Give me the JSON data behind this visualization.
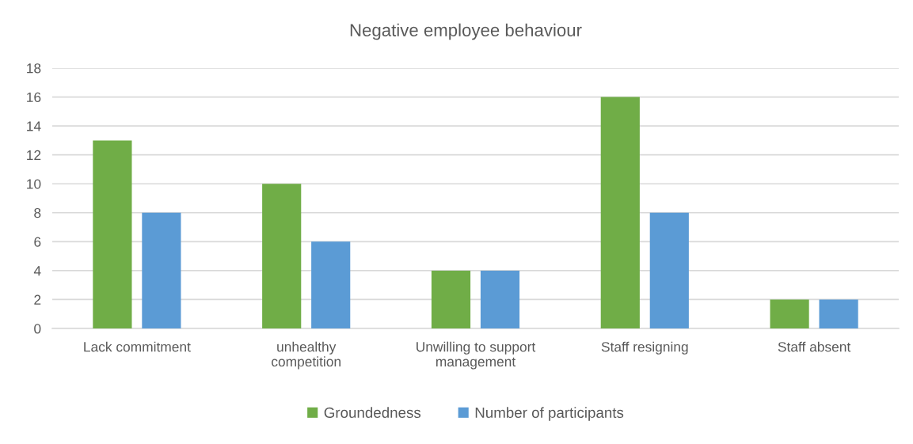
{
  "chart_data": {
    "type": "bar",
    "title": "Negative employee behaviour",
    "categories": [
      "Lack commitment",
      "unhealthy\ncompetition",
      "Unwilling to support\nmanagement",
      "Staff resigning",
      "Staff absent"
    ],
    "series": [
      {
        "name": "Groundedness",
        "color": "#70ad47",
        "values": [
          13,
          10,
          4,
          16,
          2
        ]
      },
      {
        "name": "Number of participants",
        "color": "#5b9bd5",
        "values": [
          8,
          6,
          4,
          8,
          2
        ]
      }
    ],
    "ylim": [
      0,
      18
    ],
    "yticks": [
      0,
      2,
      4,
      6,
      8,
      10,
      12,
      14,
      16,
      18
    ],
    "grid": "y",
    "legend": "bottom"
  }
}
